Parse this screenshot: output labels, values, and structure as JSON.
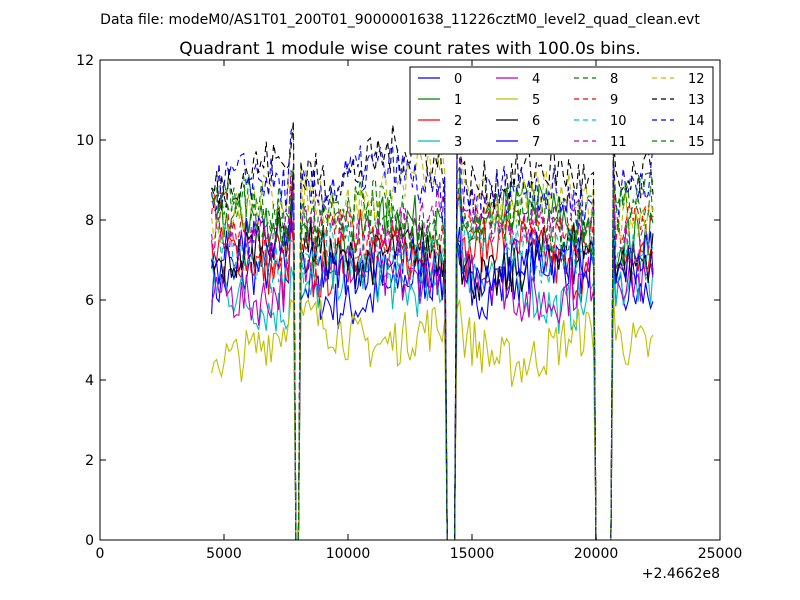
{
  "header": {
    "data_file": "Data file: modeM0/AS1T01_200T01_9000001638_11226cztM0_level2_quad_clean.evt"
  },
  "chart_data": {
    "type": "line",
    "title": "Quadrant 1 module wise count rates with 100.0s bins.",
    "xlabel": "",
    "ylabel": "",
    "xlim": [
      0,
      25000
    ],
    "ylim": [
      0,
      12
    ],
    "x_offset_label": "+2.4662e8",
    "x_ticks": [
      0,
      5000,
      10000,
      15000,
      20000,
      25000
    ],
    "x_tick_labels": [
      "0",
      "5000",
      "10000",
      "15000",
      "20000",
      "25000"
    ],
    "y_ticks": [
      0,
      2,
      4,
      6,
      8,
      10,
      12
    ],
    "y_tick_labels": [
      "0",
      "2",
      "4",
      "6",
      "8",
      "10",
      "12"
    ],
    "x_start": 4500,
    "x_end": 22300,
    "bin_width": 100,
    "gaps": [
      [
        7850,
        8050
      ],
      [
        13950,
        14350
      ],
      [
        20000,
        20650
      ]
    ],
    "legend_position": "top-right",
    "series": [
      {
        "name": "0",
        "color": "#0000ff",
        "dash": "solid",
        "mean": 6.4
      },
      {
        "name": "1",
        "color": "#008000",
        "dash": "solid",
        "mean": 7.8
      },
      {
        "name": "2",
        "color": "#ff0000",
        "dash": "solid",
        "mean": 7.0
      },
      {
        "name": "3",
        "color": "#00bfbf",
        "dash": "solid",
        "mean": 6.3
      },
      {
        "name": "4",
        "color": "#bf00bf",
        "dash": "solid",
        "mean": 6.5
      },
      {
        "name": "5",
        "color": "#bfbf00",
        "dash": "solid",
        "mean": 5.0
      },
      {
        "name": "6",
        "color": "#000000",
        "dash": "solid",
        "mean": 7.1
      },
      {
        "name": "7",
        "color": "#0000ff",
        "dash": "solid",
        "mean": 6.9
      },
      {
        "name": "8",
        "color": "#008000",
        "dash": "dashed",
        "mean": 8.1
      },
      {
        "name": "9",
        "color": "#ff0000",
        "dash": "dashed",
        "mean": 7.6
      },
      {
        "name": "10",
        "color": "#00bfbf",
        "dash": "dashed",
        "mean": 7.2
      },
      {
        "name": "11",
        "color": "#bf00bf",
        "dash": "dashed",
        "mean": 7.9
      },
      {
        "name": "12",
        "color": "#bfbf00",
        "dash": "dashed",
        "mean": 8.6
      },
      {
        "name": "13",
        "color": "#000000",
        "dash": "dashed",
        "mean": 9.2
      },
      {
        "name": "14",
        "color": "#0000ff",
        "dash": "dashed",
        "mean": 8.8
      },
      {
        "name": "15",
        "color": "#008000",
        "dash": "dashed",
        "mean": 8.0
      }
    ]
  }
}
